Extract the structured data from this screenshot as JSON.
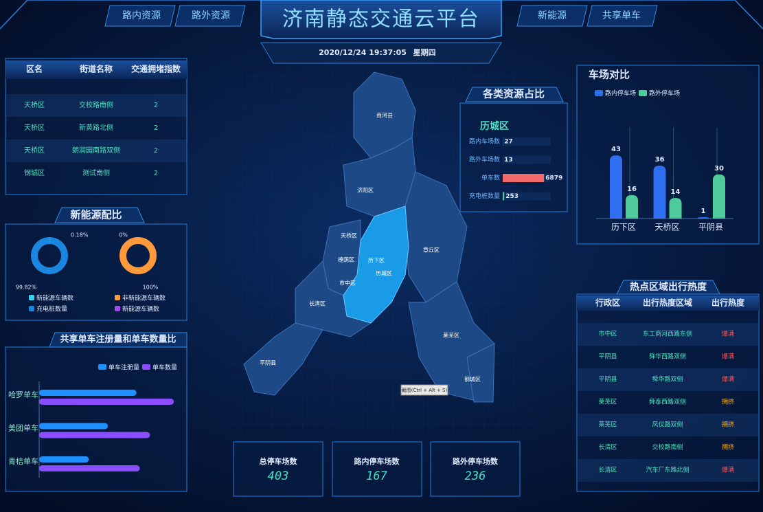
{
  "header": {
    "nav_left": [
      "路内资源",
      "路外资源"
    ],
    "title": "济南静态交通云平台",
    "nav_right": [
      "新能源",
      "共享单车"
    ],
    "date": "2020/12/24  19:37:05",
    "weekday": "星期四"
  },
  "congestion_table": {
    "columns": [
      "区名",
      "街道名称",
      "交通拥堵指数"
    ],
    "rows": [
      [
        "天桥区",
        "交校路南侧",
        2
      ],
      [
        "天桥区",
        "新黄路北侧",
        2
      ],
      [
        "天桥区",
        "朗润园南路双侧",
        2
      ],
      [
        "钢城区",
        "测试南侧",
        2
      ]
    ]
  },
  "new_energy": {
    "title": "新能源配比"
  },
  "map": {
    "regions": [
      "商河县",
      "济阳区",
      "天桥区",
      "槐荫区",
      "历下区",
      "历城区",
      "市中区",
      "章丘区",
      "长清区",
      "莱芜区",
      "钢城区",
      "平阴县"
    ],
    "tooltip": "截图(Ctrl + Alt + S)"
  },
  "stats": [
    {
      "label": "总停车场数",
      "value": 403
    },
    {
      "label": "路内停车场数",
      "value": 167
    },
    {
      "label": "路外停车场数",
      "value": 236
    }
  ],
  "hotspot_table": {
    "title": "热点区域出行热度",
    "columns": [
      "行政区",
      "出行热度区域",
      "出行热度"
    ],
    "rows": [
      [
        "市中区",
        "东工商河西路东侧",
        "爆满"
      ],
      [
        "平阴县",
        "舜华西路双侧",
        "爆满"
      ],
      [
        "平阴县",
        "舜华路双侧",
        "爆满"
      ],
      [
        "莱芜区",
        "舜泰西路双侧",
        "拥挤"
      ],
      [
        "莱芜区",
        "凤仪路双侧",
        "拥挤"
      ],
      [
        "长清区",
        "交校路南侧",
        "拥挤"
      ],
      [
        "长清区",
        "汽车厂东路北侧",
        "爆满"
      ]
    ],
    "heat_colors": {
      "爆满": "#ff5252",
      "拥挤": "#ffb020"
    }
  },
  "chart_data": [
    {
      "type": "pie",
      "categories": [
        "新能源车辆数",
        "充电桩数量"
      ],
      "values": [
        0.18,
        99.82
      ],
      "value_labels": [
        "0.18%",
        "99.82%"
      ],
      "colors": [
        "#37d3f5",
        "#1a86e0"
      ]
    },
    {
      "type": "pie",
      "categories": [
        "非新能源车辆数",
        "新能源车辆数"
      ],
      "values": [
        100,
        0
      ],
      "value_labels": [
        "100%",
        "0%"
      ],
      "colors": [
        "#ff9a3c",
        "#a24cf0"
      ]
    },
    {
      "type": "hbar",
      "title": "共享单车注册量和单车数量比",
      "categories": [
        "哈罗单车",
        "美团单车",
        "青桔单车"
      ],
      "series": [
        {
          "name": "单车注册量",
          "color": "#1e90ff",
          "values": [
            143,
            101,
            73
          ]
        },
        {
          "name": "单车数量",
          "color": "#8a4dff",
          "values": [
            198,
            163,
            148
          ]
        }
      ],
      "xlim": [
        0,
        210
      ]
    },
    {
      "type": "hbar-single",
      "title": "各类资源占比",
      "subtitle": "历城区",
      "categories": [
        "路内车场数",
        "路外车场数",
        "单车数",
        "充电桩数量"
      ],
      "values": [
        27,
        13,
        6879,
        253
      ],
      "colors": [
        "#2f7cf6",
        "#8a4dff",
        "#f06a6a",
        "#4ecb9a"
      ],
      "xlim": [
        0,
        8000
      ]
    },
    {
      "type": "bar",
      "title": "车场对比",
      "categories": [
        "历下区",
        "天桥区",
        "平阴县"
      ],
      "series": [
        {
          "name": "路内停车场",
          "color": "#2f6ef0",
          "values": [
            43,
            36,
            1
          ]
        },
        {
          "name": "路外停车场",
          "color": "#4ecb9a",
          "values": [
            16,
            14,
            30
          ]
        }
      ],
      "ylim": [
        0,
        50
      ]
    }
  ]
}
